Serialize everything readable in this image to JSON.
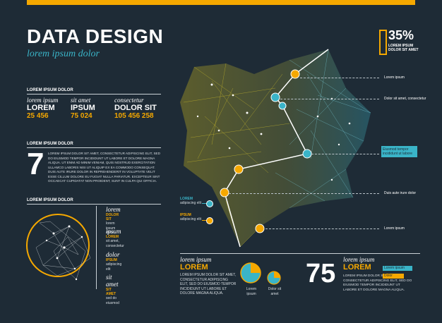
{
  "header": {
    "title": "DATA DESIGN",
    "subtitle": "lorem ipsum dolor"
  },
  "percent": {
    "value": "35%",
    "label1": "LOREM IPSUM",
    "label2": "DOLOR SIT AMET"
  },
  "section1": {
    "heading": "LOREM IPSUM DOLOR",
    "cols": [
      {
        "label": "lorem ipsum",
        "name": "LOREM",
        "value": "25 456"
      },
      {
        "label": "sit amet",
        "name": "IPSUM",
        "value": "75 024"
      },
      {
        "label": "consectetur",
        "name": "DOLOR SIT",
        "value": "105 456 258"
      }
    ]
  },
  "section2": {
    "heading": "LOREM IPSUM DOLOR",
    "number": "7",
    "text": "LOREM IPSUM DOLOR SIT AMET, CONSECTETUR ADIPISCING ELIT, SED DO EIUSMOD TEMPOR INCIDIDUNT UT LABORE ET DOLORE MAGNA ALIQUA. UT ENIM AD MINIM VENIAM, QUIS NOSTRUD EXERCITATION ULLAMCO LABORIS NISI UT ALIQUIP EX EA COMMODO CONSEQUAT. DUIS AUTE IRURE DOLOR IN REPREHENDERIT IN VOLUPTATE VELIT ESSE CILLUM DOLORE EU FUGIAT NULLA PARIATUR. EXCEPTEUR SINT OCCAECAT CUPIDATAT NON PROIDENT, SUNT IN CULPA QUI OFFICIA."
  },
  "section3": {
    "heading": "LOREM IPSUM DOLOR",
    "items": [
      {
        "title": "lorem",
        "key": "DOLOR SIT",
        "desc": "lorem ipsum dolor"
      },
      {
        "title": "ipsum",
        "key": "LOREM",
        "desc": "sit amet, consectetur"
      },
      {
        "title": "dolor",
        "key": "IPSUM",
        "desc": "adipiscing elit"
      },
      {
        "title": "sit amet",
        "key": "SIT AMET",
        "desc": "sed do eiusmod"
      }
    ]
  },
  "map_callouts": [
    "Lorem ipsum",
    "Dolor sit amet, consectetur",
    "Eiusmod tempor incididunt ut labore",
    "Duis aute irure dolor",
    "Lorem ipsum"
  ],
  "map_legend": [
    {
      "key": "LOREM",
      "desc": "adipiscing elit"
    },
    {
      "key": "IPSUM",
      "desc": "adipiscing elit"
    }
  ],
  "bottom": {
    "left": {
      "title": "lorem ipsum",
      "name": "LOREM",
      "text": "LOREM IPSUM DOLOR SIT AMET, CONSECTETUR ADIPISCING ELIT, SED DO EIUSMOD TEMPOR INCIDIDUNT UT LABORE ET DOLORE MAGNA ALIQUA."
    },
    "pies": [
      {
        "label": "Lorem ipsum",
        "fraction": 0.75
      },
      {
        "label": "Dolor sit amet",
        "fraction": 0.25
      }
    ],
    "right": {
      "number": "75",
      "title": "lorem ipsum",
      "name": "LOREM",
      "text": "LOREM IPSUM DOLOR SIT AMET, CONSECTETUR ADIPISCING ELIT, SED DO EIUSMOD TEMPOR INCIDIDUNT UT LABORE ET DOLORE MAGNA ALIQUA.",
      "bar1": "Lorem ipsum",
      "bar2": "Dolor"
    }
  },
  "colors": {
    "bg": "#1e2b36",
    "yellow": "#f5a800",
    "cyan": "#3ab4c8"
  }
}
